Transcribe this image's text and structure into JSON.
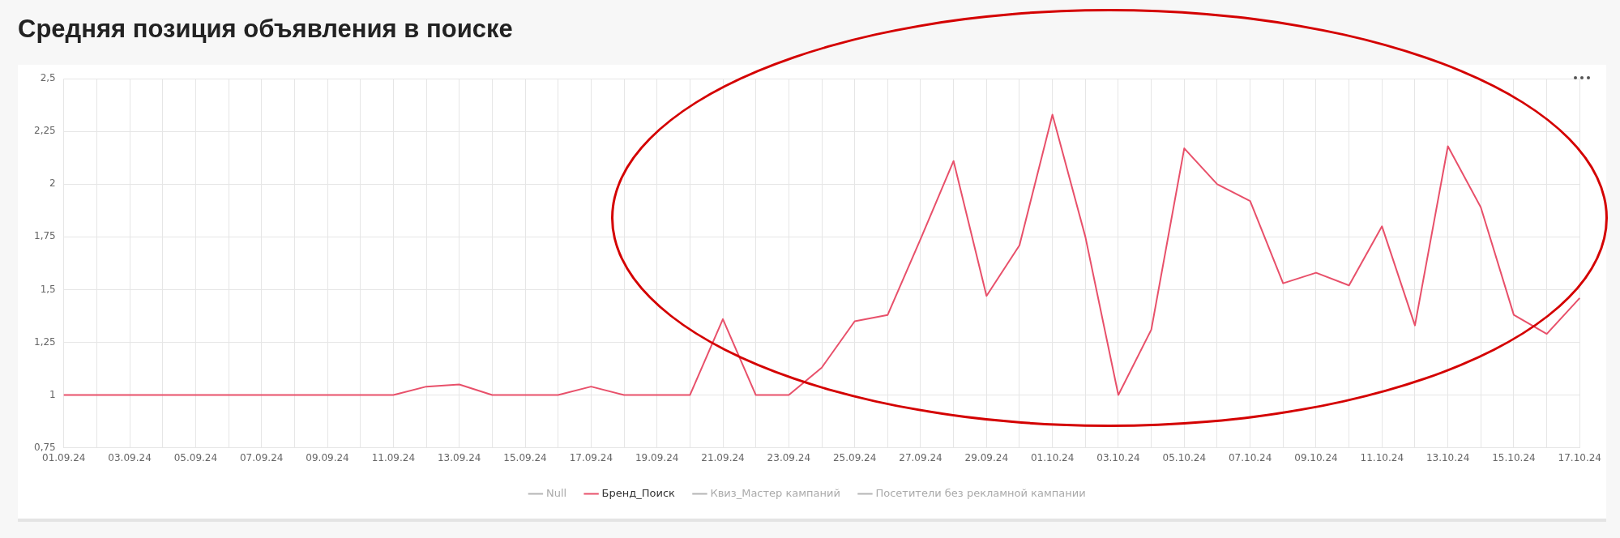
{
  "chart_data": {
    "type": "line",
    "title": "Средняя позиция объявления в поиске",
    "categories": [
      "01.09.24",
      null,
      "03.09.24",
      null,
      "05.09.24",
      null,
      "07.09.24",
      null,
      "09.09.24",
      null,
      "11.09.24",
      null,
      "13.09.24",
      null,
      "15.09.24",
      null,
      "17.09.24",
      null,
      "19.09.24",
      null,
      "21.09.24",
      null,
      "23.09.24",
      null,
      "25.09.24",
      null,
      "27.09.24",
      null,
      "29.09.24",
      null,
      "01.10.24",
      null,
      "03.10.24",
      null,
      "05.10.24",
      null,
      "07.10.24",
      null,
      "09.10.24",
      null,
      "11.10.24",
      null,
      "13.10.24",
      null,
      "15.10.24",
      null,
      "17.10.24"
    ],
    "series": [
      {
        "name": "Null",
        "color": "#b4b4b4",
        "values": [
          null,
          null,
          null,
          null,
          null,
          null,
          null,
          null,
          null,
          null,
          null,
          null,
          null,
          null,
          null,
          null,
          null,
          null,
          null,
          null,
          null,
          null,
          null,
          null,
          null,
          null,
          null,
          null,
          null,
          null,
          null,
          null,
          null,
          null,
          null,
          null,
          null,
          null,
          null,
          null,
          null,
          null,
          null,
          null,
          null,
          null,
          null
        ]
      },
      {
        "name": "Бренд_Поиск",
        "color": "#e8506a",
        "values": [
          1,
          1,
          1,
          1,
          1,
          1,
          1,
          1,
          1,
          1,
          1,
          1.04,
          1.05,
          1,
          1,
          1,
          1.04,
          1,
          1,
          1,
          1.36,
          1,
          1,
          1.13,
          1.35,
          1.38,
          1.74,
          2.11,
          1.47,
          1.71,
          2.33,
          1.75,
          1,
          1.31,
          2.17,
          2,
          1.92,
          1.53,
          1.58,
          1.52,
          1.8,
          1.33,
          2.18,
          1.89,
          1.38,
          1.29,
          1.46
        ]
      },
      {
        "name": "Квиз_Мастер кампаний",
        "color": "#b4b4b4",
        "values": [
          null,
          null,
          null,
          null,
          null,
          null,
          null,
          null,
          null,
          null,
          null,
          null,
          null,
          null,
          null,
          null,
          null,
          null,
          null,
          null,
          null,
          null,
          null,
          null,
          null,
          null,
          null,
          null,
          null,
          null,
          null,
          null,
          null,
          null,
          null,
          null,
          null,
          null,
          null,
          null,
          null,
          null,
          null,
          null,
          null,
          null,
          null
        ]
      },
      {
        "name": "Посетители без рекламной кампании",
        "color": "#b4b4b4",
        "values": [
          null,
          null,
          null,
          null,
          null,
          null,
          null,
          null,
          null,
          null,
          null,
          null,
          null,
          null,
          null,
          null,
          null,
          null,
          null,
          null,
          null,
          null,
          null,
          null,
          null,
          null,
          null,
          null,
          null,
          null,
          null,
          null,
          null,
          null,
          null,
          null,
          null,
          null,
          null,
          null,
          null,
          null,
          null,
          null,
          null,
          null,
          null
        ]
      }
    ],
    "ylim": [
      0.75,
      2.5
    ],
    "yticks": [
      {
        "value": 0.75,
        "label": "0,75"
      },
      {
        "value": 1,
        "label": "1"
      },
      {
        "value": 1.25,
        "label": "1,25"
      },
      {
        "value": 1.5,
        "label": "1,5"
      },
      {
        "value": 1.75,
        "label": "1,75"
      },
      {
        "value": 2,
        "label": "2"
      },
      {
        "value": 2.25,
        "label": "2,25"
      },
      {
        "value": 2.5,
        "label": "2,5"
      }
    ],
    "grid": true,
    "legend": "bottom",
    "marker": "none",
    "line_style": "solid"
  }
}
